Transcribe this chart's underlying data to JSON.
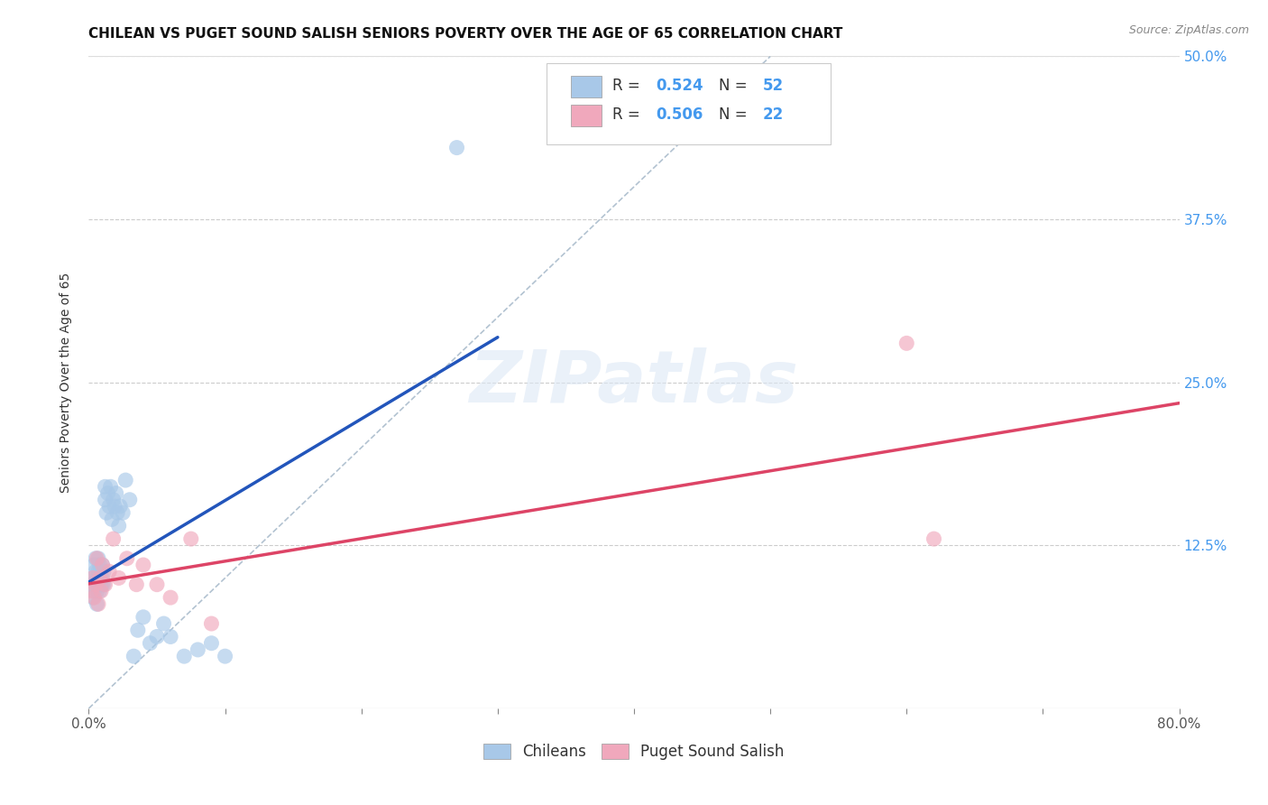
{
  "title": "CHILEAN VS PUGET SOUND SALISH SENIORS POVERTY OVER THE AGE OF 65 CORRELATION CHART",
  "source": "Source: ZipAtlas.com",
  "ylabel": "Seniors Poverty Over the Age of 65",
  "xlim": [
    0.0,
    0.8
  ],
  "ylim": [
    0.0,
    0.5
  ],
  "color_chilean": "#a8c8e8",
  "color_salish": "#f0a8bc",
  "color_line_chilean": "#2255bb",
  "color_line_salish": "#dd4466",
  "color_diag": "#aabccc",
  "chilean_x": [
    0.002,
    0.003,
    0.003,
    0.004,
    0.004,
    0.005,
    0.005,
    0.005,
    0.006,
    0.006,
    0.006,
    0.007,
    0.007,
    0.007,
    0.008,
    0.008,
    0.008,
    0.009,
    0.009,
    0.01,
    0.01,
    0.01,
    0.011,
    0.011,
    0.012,
    0.012,
    0.013,
    0.014,
    0.015,
    0.016,
    0.017,
    0.018,
    0.019,
    0.02,
    0.021,
    0.022,
    0.023,
    0.025,
    0.027,
    0.03,
    0.033,
    0.036,
    0.04,
    0.045,
    0.05,
    0.055,
    0.06,
    0.07,
    0.08,
    0.09,
    0.1,
    0.27
  ],
  "chilean_y": [
    0.095,
    0.1,
    0.085,
    0.11,
    0.09,
    0.105,
    0.095,
    0.115,
    0.1,
    0.09,
    0.08,
    0.095,
    0.105,
    0.115,
    0.1,
    0.09,
    0.11,
    0.095,
    0.105,
    0.095,
    0.1,
    0.11,
    0.095,
    0.105,
    0.16,
    0.17,
    0.15,
    0.165,
    0.155,
    0.17,
    0.145,
    0.16,
    0.155,
    0.165,
    0.15,
    0.14,
    0.155,
    0.15,
    0.175,
    0.16,
    0.04,
    0.06,
    0.07,
    0.05,
    0.055,
    0.065,
    0.055,
    0.04,
    0.045,
    0.05,
    0.04,
    0.43
  ],
  "salish_x": [
    0.002,
    0.003,
    0.004,
    0.005,
    0.006,
    0.007,
    0.008,
    0.009,
    0.01,
    0.012,
    0.015,
    0.018,
    0.022,
    0.028,
    0.035,
    0.04,
    0.05,
    0.06,
    0.075,
    0.09,
    0.6,
    0.62
  ],
  "salish_y": [
    0.09,
    0.1,
    0.085,
    0.095,
    0.115,
    0.08,
    0.1,
    0.09,
    0.11,
    0.095,
    0.105,
    0.13,
    0.1,
    0.115,
    0.095,
    0.11,
    0.095,
    0.085,
    0.13,
    0.065,
    0.28,
    0.13
  ]
}
